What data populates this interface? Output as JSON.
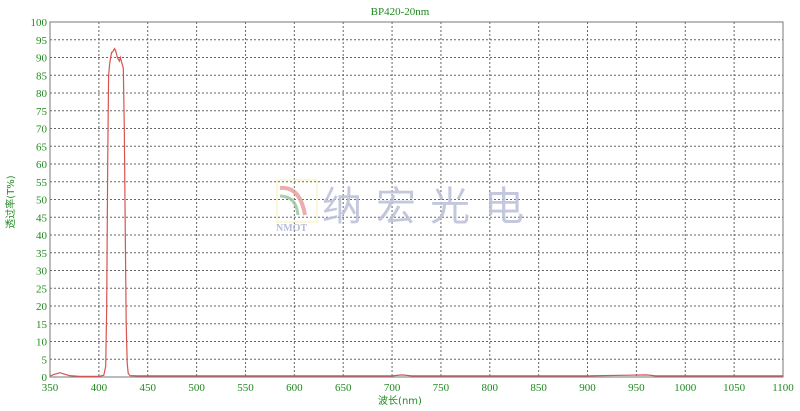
{
  "chart_data": {
    "type": "line",
    "title": "BP420-20nm",
    "xlabel": "波长(nm)",
    "ylabel": "透过率(T%)",
    "xlim": [
      350,
      1100
    ],
    "ylim": [
      0,
      100
    ],
    "xticks": [
      350,
      400,
      450,
      500,
      550,
      600,
      650,
      700,
      750,
      800,
      850,
      900,
      950,
      1000,
      1050,
      1100
    ],
    "yticks": [
      0,
      5,
      10,
      15,
      20,
      25,
      30,
      35,
      40,
      45,
      50,
      55,
      60,
      65,
      70,
      75,
      80,
      85,
      90,
      95,
      100
    ],
    "grid": true,
    "series": [
      {
        "color": "#d9534f",
        "x": [
          350,
          355,
          360,
          365,
          370,
          380,
          400,
          405,
          407,
          408,
          409,
          410,
          411,
          412,
          413,
          414,
          415,
          416,
          417,
          418,
          419,
          420,
          421,
          422,
          423,
          424,
          425,
          426,
          427,
          428,
          429,
          430,
          432,
          440,
          500,
          600,
          700,
          710,
          720,
          800,
          900,
          960,
          970,
          1000,
          1100
        ],
        "y": [
          0.3,
          0.8,
          1.2,
          0.8,
          0.4,
          0.2,
          0.2,
          0.5,
          3,
          20,
          60,
          85,
          88,
          90,
          91.5,
          91.5,
          92,
          92.5,
          92,
          91,
          90,
          89.5,
          89,
          90,
          89,
          88,
          87,
          70,
          40,
          15,
          4,
          1,
          0.4,
          0.3,
          0.3,
          0.3,
          0.3,
          0.6,
          0.3,
          0.3,
          0.3,
          0.6,
          0.3,
          0.3,
          0.3
        ]
      }
    ]
  },
  "watermark": {
    "text": "纳宏光电",
    "logo_text": "NMOT"
  }
}
